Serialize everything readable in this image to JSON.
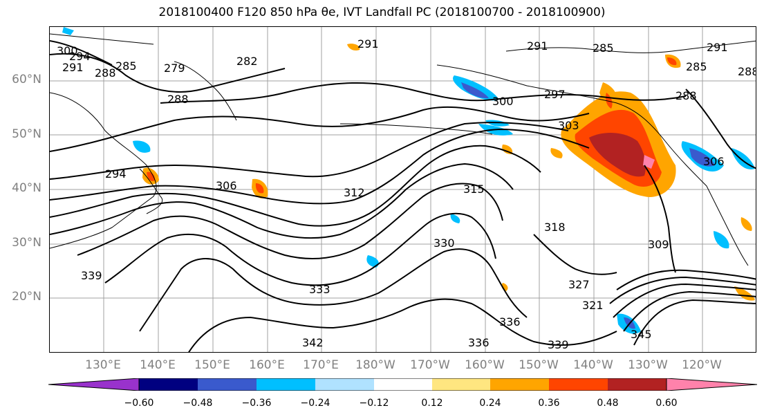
{
  "title_text": "2018100400 F120 850 hPa θe, IVT Landfall PC (2018100700 - 2018100900)",
  "lat_labels": [
    "60°N",
    "50°N",
    "40°N",
    "30°N",
    "20°N"
  ],
  "lon_labels": [
    "130°E",
    "140°E",
    "150°E",
    "160°E",
    "170°E",
    "180°W",
    "170°W",
    "160°W",
    "150°W",
    "140°W",
    "130°W",
    "120°W"
  ],
  "contour_labels": [
    "300",
    "294",
    "291",
    "288",
    "285",
    "279",
    "282",
    "288",
    "291",
    "291",
    "285",
    "291",
    "285",
    "288",
    "297",
    "300",
    "303",
    "306",
    "312",
    "315",
    "318",
    "309",
    "327",
    "321",
    "330",
    "333",
    "336",
    "339",
    "336",
    "342",
    "345",
    "339",
    "294",
    "288",
    "306"
  ],
  "colorbar": {
    "ticks": [
      "−0.60",
      "−0.48",
      "−0.36",
      "−0.24",
      "−0.12",
      "0.12",
      "0.24",
      "0.36",
      "0.48",
      "0.60"
    ],
    "colors": [
      "#9932cc",
      "#000080",
      "#3a5acd",
      "#00bfff",
      "#b0e2ff",
      "#ffffff",
      "#ffe680",
      "#ffa500",
      "#ff4500",
      "#b22222",
      "#ff82ab"
    ]
  }
}
